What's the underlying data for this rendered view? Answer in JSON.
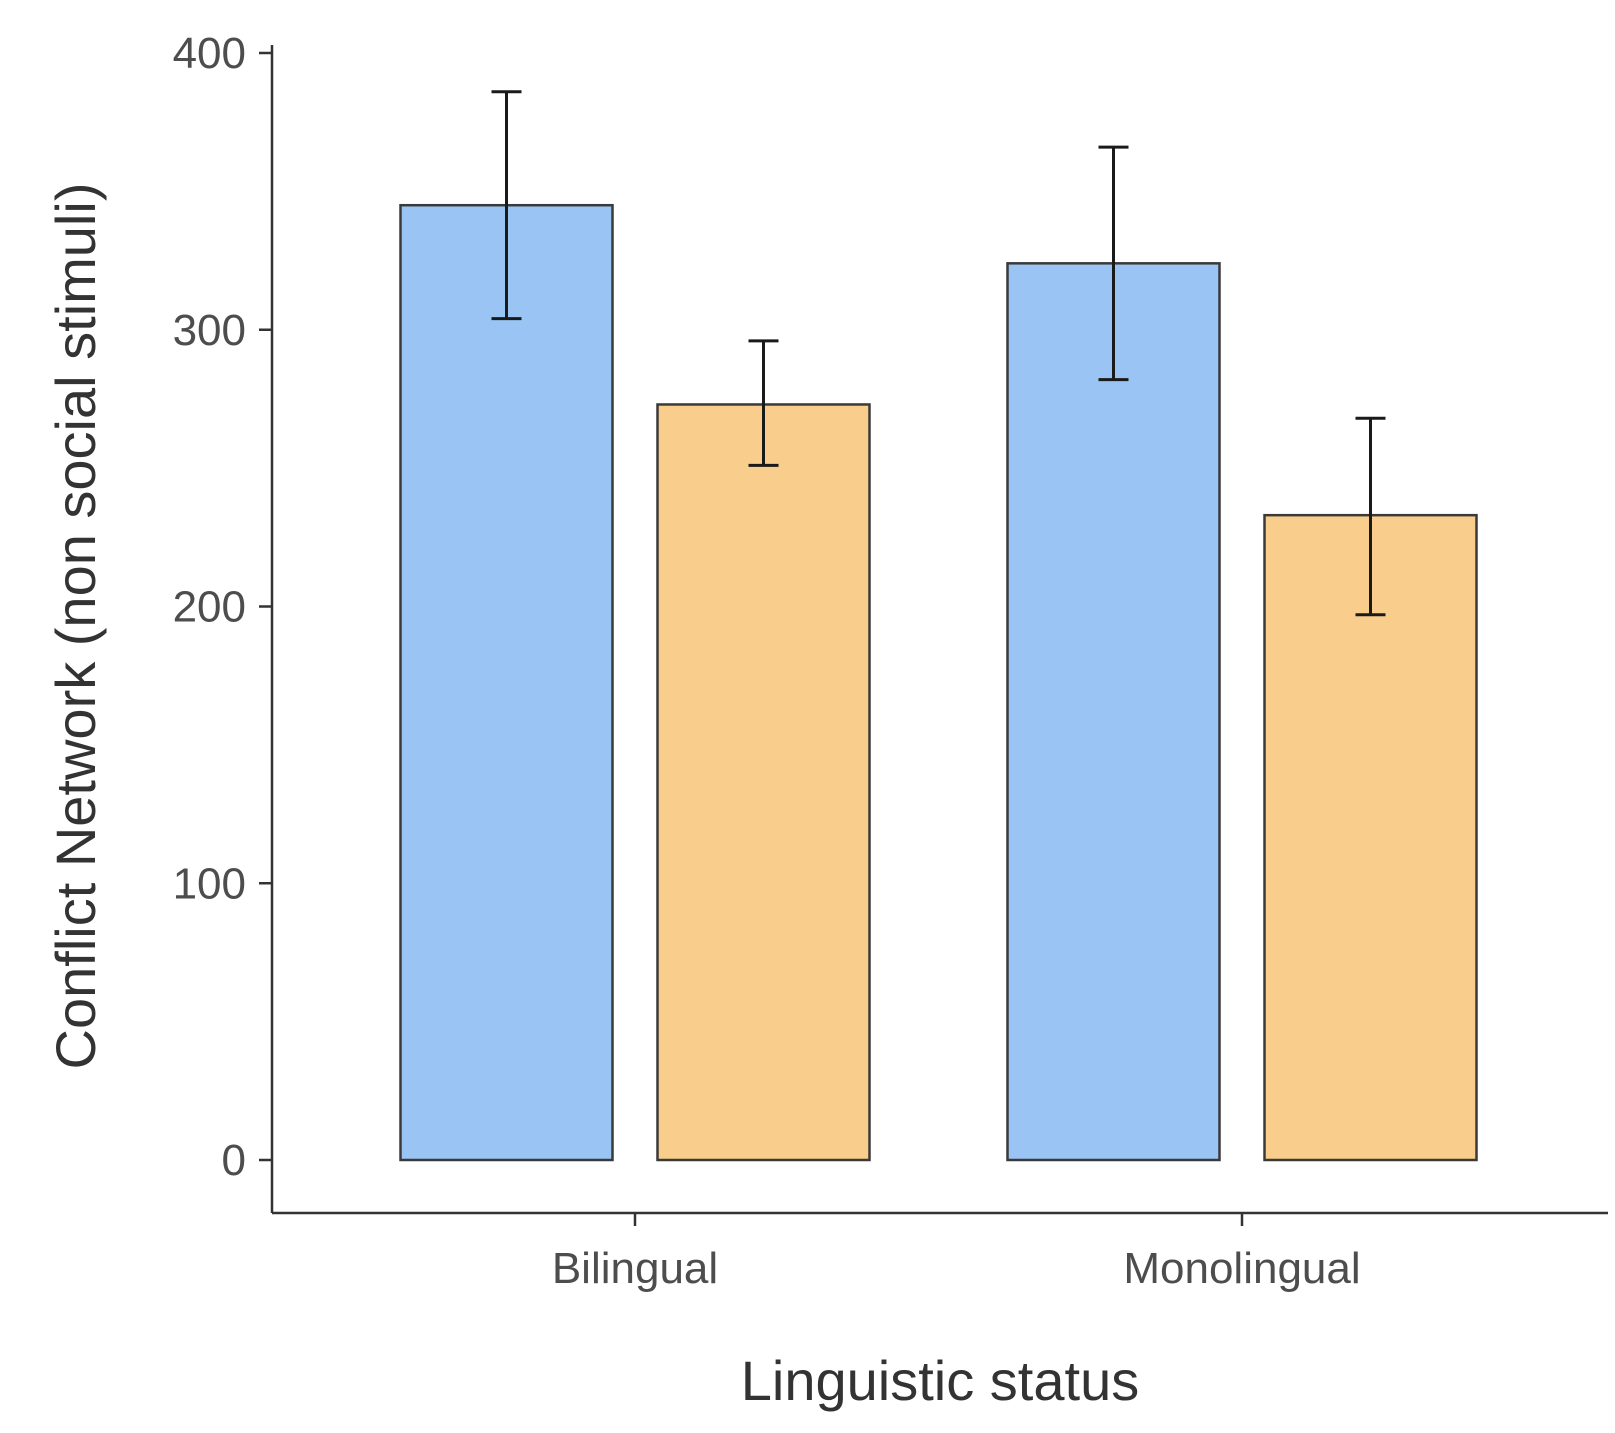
{
  "chart_data": {
    "type": "bar",
    "categories": [
      "Bilingual",
      "Monolingual"
    ],
    "series": [
      {
        "values": [
          345,
          324
        ],
        "err_low": [
          304,
          282
        ],
        "err_high": [
          386,
          366
        ]
      },
      {
        "values": [
          273,
          233
        ],
        "err_low": [
          251,
          197
        ],
        "err_high": [
          296,
          268
        ]
      }
    ],
    "xlabel": "Linguistic status",
    "ylabel": "Conflict Network (non social stimuli)",
    "ylim": [
      0,
      400
    ],
    "yticks": [
      0,
      100,
      200,
      300,
      400
    ],
    "grid": false,
    "legend": "none",
    "colors": [
      "#99c4f3",
      "#f9cd8c"
    ]
  }
}
